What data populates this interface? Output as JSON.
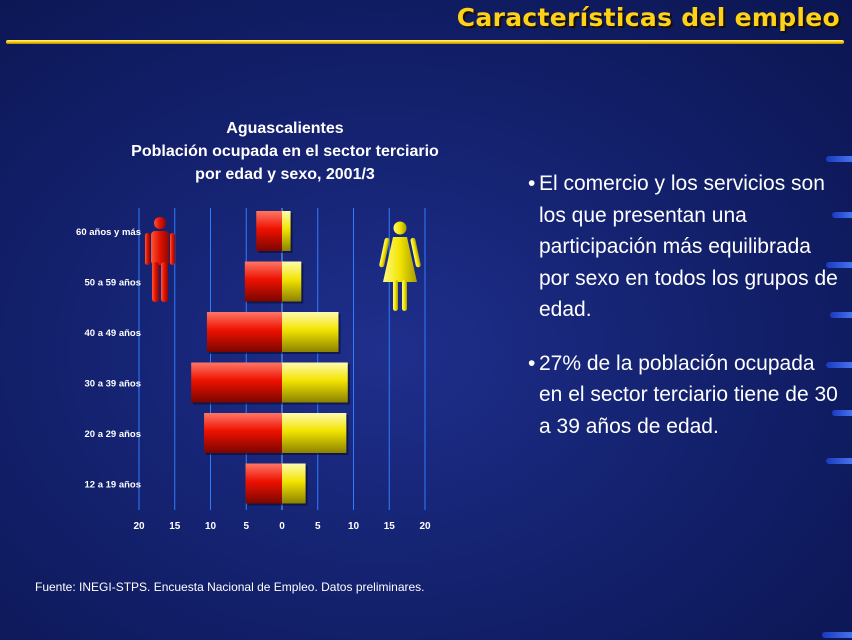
{
  "slide": {
    "title": "Características del empleo",
    "source": "Fuente: INEGI-STPS.  Encuesta Nacional de Empleo. Datos preliminares."
  },
  "colors": {
    "title": "#ffd21a",
    "male": "#ee1100",
    "female": "#f2e400",
    "background": "#142270"
  },
  "icons": {
    "male": "man-icon",
    "female": "woman-icon"
  },
  "bullets": [
    "El comercio y  los servicios son los que presentan una participación más equilibrada por sexo en todos los grupos de edad.",
    "27%  de la población ocupada en el sector terciario tiene de 30 a 39 años de edad."
  ],
  "chart_data": {
    "type": "bar",
    "orientation": "horizontal-pyramid",
    "title_lines": [
      "Aguascalientes",
      "Población ocupada en el sector terciario",
      "por edad y sexo, 2001/3"
    ],
    "categories": [
      "60 años y más",
      "50 a 59 años",
      "40 a 49 años",
      "30 a 39 años",
      "20 a 29 años",
      "12 a 19 años"
    ],
    "series": [
      {
        "color": "#ee1100",
        "values": [
          3.6,
          5.2,
          10.5,
          12.7,
          10.9,
          5.1
        ]
      },
      {
        "color": "#f2e400",
        "values": [
          1.2,
          2.7,
          7.9,
          9.2,
          9.0,
          3.3
        ]
      }
    ],
    "xlim": [
      -20,
      20
    ],
    "xticks": [
      -20,
      -15,
      -10,
      -5,
      0,
      5,
      10,
      15,
      20
    ],
    "xtick_labels": [
      "20",
      "15",
      "10",
      "5",
      "0",
      "5",
      "10",
      "15",
      "20"
    ],
    "grid": true
  }
}
